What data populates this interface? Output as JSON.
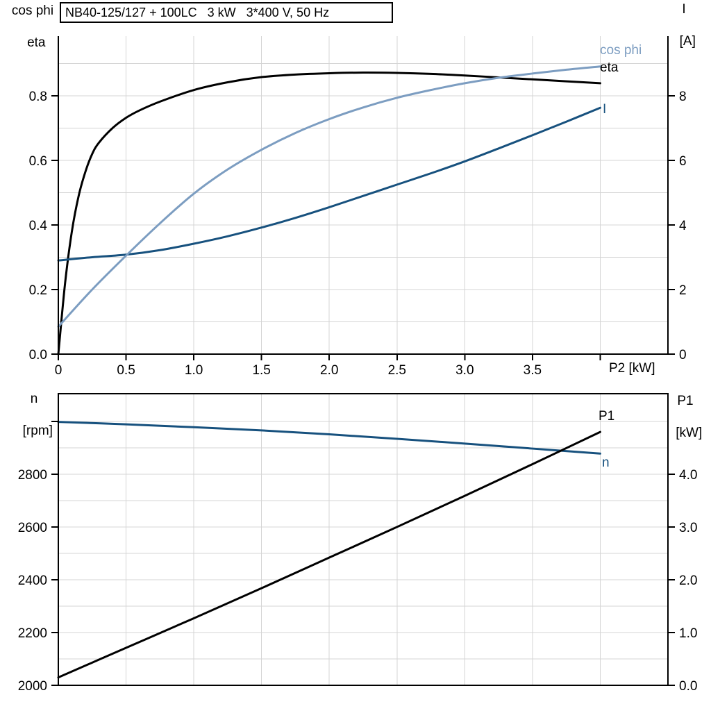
{
  "title": "NB40-125/127 + 100LC   3 kW   3*400 V, 50 Hz",
  "colors": {
    "curve_black": "#000000",
    "curve_light_blue": "#7c9dc1",
    "curve_dark_blue": "#17517e"
  },
  "chart_data": [
    {
      "type": "line",
      "name": "motor-efficiency-chart",
      "x_axis": {
        "label": "P2 [kW]",
        "min": 0,
        "max": 4.5,
        "grid_step": 0.5,
        "ticks": [
          0,
          0.5,
          1.0,
          1.5,
          2.0,
          2.5,
          3.0,
          3.5,
          4.0
        ],
        "tick_labels": [
          "0",
          "0.5",
          "1.0",
          "1.5",
          "2.0",
          "2.5",
          "3.0",
          "3.5",
          ""
        ]
      },
      "left_axis": {
        "title_lines": [
          "cos phi",
          "eta"
        ],
        "min": 0,
        "max": 0.985,
        "grid_step": 0.1,
        "ticks": [
          0.0,
          0.2,
          0.4,
          0.6,
          0.8
        ],
        "tick_labels": [
          "0.0",
          "0.2",
          "0.4",
          "0.6",
          "0.8"
        ]
      },
      "right_axis": {
        "title_lines": [
          "I",
          "[A]"
        ],
        "min": 0,
        "max": 9.85,
        "ticks": [
          0,
          2,
          4,
          6,
          8
        ],
        "tick_labels": [
          "0",
          "2",
          "4",
          "6",
          "8"
        ]
      },
      "series": [
        {
          "name": "eta",
          "axis": "left",
          "color": "#000000",
          "points": [
            [
              0,
              0
            ],
            [
              0.05,
              0.22
            ],
            [
              0.1,
              0.38
            ],
            [
              0.15,
              0.49
            ],
            [
              0.2,
              0.565
            ],
            [
              0.25,
              0.62
            ],
            [
              0.3,
              0.655
            ],
            [
              0.4,
              0.7
            ],
            [
              0.5,
              0.732
            ],
            [
              0.6,
              0.755
            ],
            [
              0.75,
              0.782
            ],
            [
              1.0,
              0.818
            ],
            [
              1.25,
              0.842
            ],
            [
              1.5,
              0.858
            ],
            [
              1.75,
              0.866
            ],
            [
              2.0,
              0.87
            ],
            [
              2.25,
              0.872
            ],
            [
              2.5,
              0.871
            ],
            [
              2.75,
              0.868
            ],
            [
              3.0,
              0.863
            ],
            [
              3.25,
              0.857
            ],
            [
              3.5,
              0.851
            ],
            [
              3.75,
              0.845
            ],
            [
              4.0,
              0.839
            ]
          ]
        },
        {
          "name": "I",
          "axis": "right",
          "color": "#17517e",
          "points": [
            [
              0,
              2.9
            ],
            [
              0.25,
              3.0
            ],
            [
              0.5,
              3.08
            ],
            [
              0.75,
              3.22
            ],
            [
              1.0,
              3.42
            ],
            [
              1.25,
              3.65
            ],
            [
              1.5,
              3.92
            ],
            [
              1.75,
              4.22
            ],
            [
              2.0,
              4.55
            ],
            [
              2.25,
              4.9
            ],
            [
              2.5,
              5.25
            ],
            [
              2.75,
              5.6
            ],
            [
              3.0,
              5.97
            ],
            [
              3.25,
              6.37
            ],
            [
              3.5,
              6.78
            ],
            [
              3.75,
              7.2
            ],
            [
              4.0,
              7.63
            ]
          ]
        },
        {
          "name": "cos phi",
          "axis": "left",
          "color": "#7c9dc1",
          "points": [
            [
              0,
              0.085
            ],
            [
              0.25,
              0.2
            ],
            [
              0.5,
              0.305
            ],
            [
              0.75,
              0.405
            ],
            [
              1.0,
              0.497
            ],
            [
              1.25,
              0.572
            ],
            [
              1.5,
              0.633
            ],
            [
              1.75,
              0.685
            ],
            [
              2.0,
              0.728
            ],
            [
              2.25,
              0.764
            ],
            [
              2.5,
              0.794
            ],
            [
              2.75,
              0.818
            ],
            [
              3.0,
              0.839
            ],
            [
              3.25,
              0.856
            ],
            [
              3.5,
              0.869
            ],
            [
              3.75,
              0.881
            ],
            [
              4.0,
              0.891
            ]
          ]
        }
      ]
    },
    {
      "type": "line",
      "name": "speed-power-chart",
      "x_axis": {
        "label": "",
        "min": 0,
        "max": 4.5,
        "grid_step": 0.5,
        "ticks": [],
        "tick_labels": []
      },
      "left_axis": {
        "title_lines": [
          "n",
          "[rpm]"
        ],
        "min": 2000,
        "max": 3105,
        "grid_step": 100,
        "ticks": [
          2000,
          2200,
          2400,
          2600,
          2800,
          3000
        ],
        "tick_labels": [
          "2000",
          "2200",
          "2400",
          "2600",
          "2800",
          ""
        ]
      },
      "right_axis": {
        "title_lines": [
          "P1",
          "[kW]"
        ],
        "min": 0,
        "max": 5.525,
        "ticks": [
          0.0,
          1.0,
          2.0,
          3.0,
          4.0
        ],
        "tick_labels": [
          "0.0",
          "1.0",
          "2.0",
          "3.0",
          "4.0"
        ]
      },
      "series": [
        {
          "name": "n",
          "axis": "left",
          "color": "#17517e",
          "points": [
            [
              0,
              2998
            ],
            [
              0.5,
              2989
            ],
            [
              1.0,
              2978
            ],
            [
              1.5,
              2966
            ],
            [
              2.0,
              2951
            ],
            [
              2.5,
              2934
            ],
            [
              3.0,
              2916
            ],
            [
              3.5,
              2897
            ],
            [
              4.0,
              2878
            ]
          ]
        },
        {
          "name": "P1",
          "axis": "right",
          "color": "#000000",
          "points": [
            [
              0,
              0.15
            ],
            [
              0.5,
              0.71
            ],
            [
              1.0,
              1.27
            ],
            [
              1.5,
              1.84
            ],
            [
              2.0,
              2.42
            ],
            [
              2.5,
              3.0
            ],
            [
              3.0,
              3.59
            ],
            [
              3.5,
              4.19
            ],
            [
              4.0,
              4.8
            ]
          ]
        }
      ]
    }
  ]
}
